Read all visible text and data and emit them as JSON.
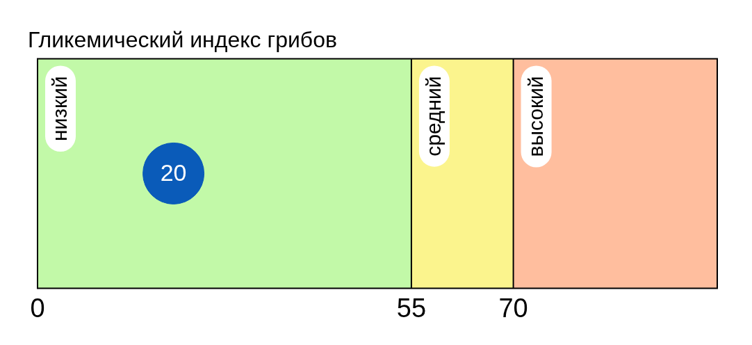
{
  "chart_data": {
    "type": "scatter",
    "title": "Гликемический индекс грибов",
    "orientation": "horizontal",
    "categories": [
      null
    ],
    "values": [
      20
    ],
    "color": "#0a5bb9",
    "marker": "circle",
    "data_labels": true,
    "xlim": [
      0,
      100
    ],
    "xticks": [
      0,
      55,
      70
    ],
    "legend": false,
    "bands": [
      {
        "axis": "x",
        "from": 0,
        "to": 55,
        "label": "низкий",
        "color": "#c2f9a8"
      },
      {
        "axis": "x",
        "from": 55,
        "to": 70,
        "label": "средний",
        "color": "#fbf48d"
      },
      {
        "axis": "x",
        "from": 70,
        "to": 100,
        "label": "высокий",
        "color": "#ffbe9e"
      }
    ]
  }
}
